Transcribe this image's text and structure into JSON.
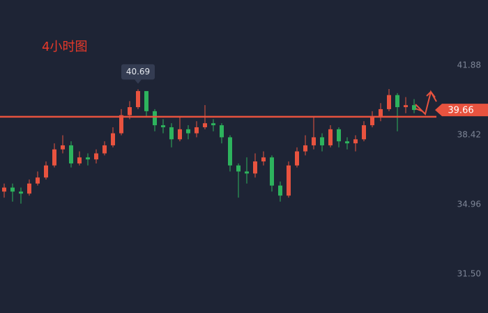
{
  "chart_data": {
    "type": "candlestick",
    "title": "4小时图",
    "open": [
      35.6,
      35.8,
      35.6,
      35.5,
      36.0,
      36.3,
      36.9,
      37.7,
      37.9,
      37.0,
      37.3,
      37.2,
      37.5,
      37.9,
      38.5,
      39.4,
      39.8,
      40.6,
      39.6,
      38.9,
      38.8,
      38.2,
      38.7,
      38.5,
      38.8,
      39.0,
      38.9,
      38.3,
      36.9,
      36.6,
      36.5,
      37.1,
      37.3,
      35.9,
      35.4,
      36.9,
      37.6,
      37.9,
      38.3,
      37.9,
      38.7,
      38.1,
      38.0,
      38.2,
      38.9,
      39.3,
      39.7,
      40.4,
      39.8,
      39.9
    ],
    "high": [
      36.0,
      36.0,
      35.8,
      36.2,
      36.6,
      37.1,
      38.0,
      38.4,
      38.1,
      37.6,
      37.5,
      37.7,
      38.1,
      38.8,
      39.7,
      40.1,
      40.69,
      40.5,
      39.7,
      39.2,
      39.0,
      39.3,
      38.9,
      39.1,
      39.9,
      39.2,
      39.0,
      38.4,
      37.0,
      37.3,
      37.5,
      37.6,
      37.4,
      36.1,
      37.1,
      37.8,
      38.4,
      39.3,
      38.5,
      38.9,
      38.8,
      38.3,
      38.4,
      39.1,
      39.6,
      40.0,
      40.7,
      40.5,
      40.3,
      40.2
    ],
    "low": [
      35.3,
      35.1,
      35.0,
      35.4,
      35.9,
      36.2,
      36.8,
      37.5,
      36.8,
      36.9,
      36.9,
      37.0,
      37.4,
      37.8,
      38.4,
      39.2,
      39.7,
      39.3,
      38.6,
      38.5,
      37.8,
      38.1,
      38.2,
      38.3,
      38.7,
      38.6,
      38.0,
      36.6,
      35.3,
      36.0,
      36.3,
      36.9,
      35.6,
      35.1,
      35.3,
      36.8,
      37.4,
      37.7,
      37.6,
      37.8,
      37.8,
      37.7,
      37.6,
      38.1,
      38.8,
      39.1,
      39.6,
      38.6,
      39.5,
      39.5
    ],
    "close": [
      35.8,
      35.6,
      35.5,
      36.0,
      36.3,
      36.9,
      37.7,
      37.9,
      37.0,
      37.3,
      37.2,
      37.5,
      37.9,
      38.5,
      39.4,
      39.8,
      40.6,
      39.6,
      38.9,
      38.8,
      38.2,
      38.7,
      38.5,
      38.8,
      39.0,
      38.9,
      38.3,
      36.9,
      36.6,
      36.5,
      37.1,
      37.3,
      35.9,
      35.4,
      36.9,
      37.6,
      37.9,
      38.3,
      37.9,
      38.7,
      38.1,
      38.0,
      38.2,
      38.9,
      39.3,
      39.7,
      40.4,
      39.8,
      39.9,
      39.66
    ],
    "up_color": "#e8533f",
    "down_color": "#2db35d",
    "ylim": [
      29.56,
      45.13
    ],
    "yticks": [
      41.88,
      38.42,
      34.96,
      {
        "value": 31.5,
        "label": "31.50"
      }
    ],
    "peak_label": 40.69,
    "last_price": 39.66,
    "support_line": 39.32,
    "line_color": "#e8533f"
  }
}
